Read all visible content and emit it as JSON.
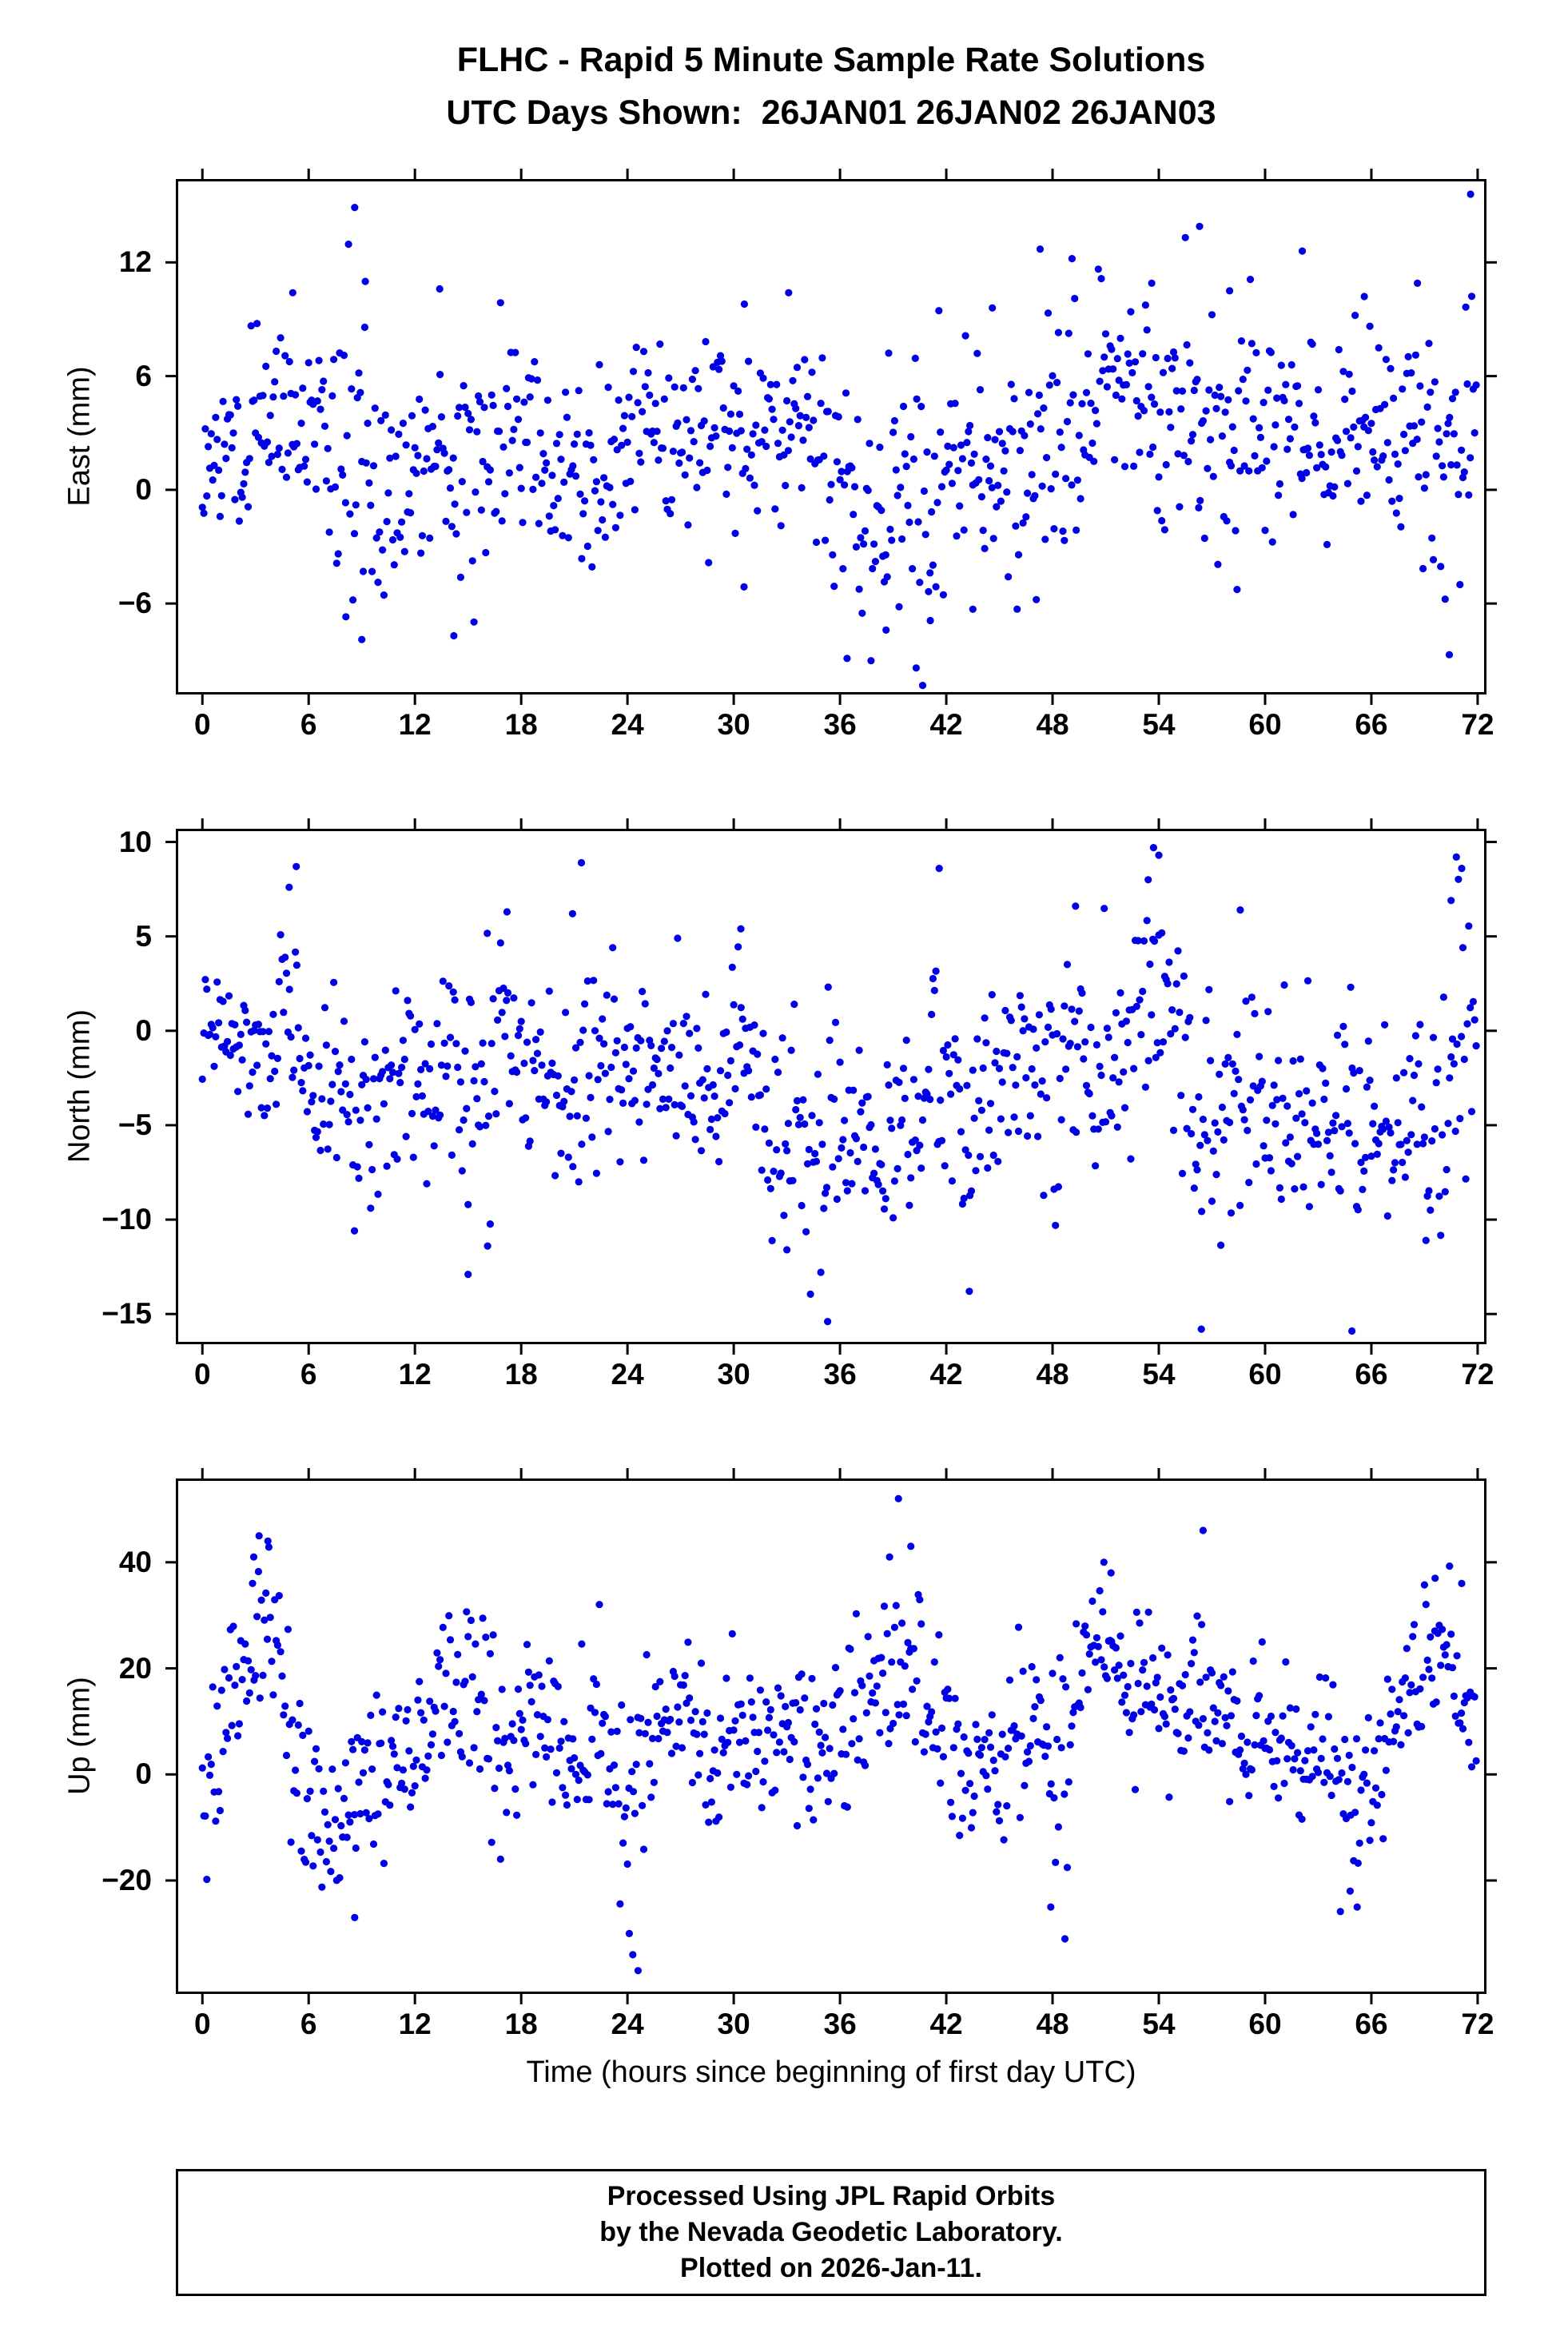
{
  "title": "FLHC - Rapid 5 Minute Sample Rate Solutions",
  "subtitle": "UTC Days Shown:  26JAN01 26JAN02 26JAN03",
  "footer": {
    "lines": [
      "Processed Using JPL Rapid Orbits",
      "by the Nevada Geodetic Laboratory.",
      "Plotted on 2026-Jan-11."
    ]
  },
  "chart_data": {
    "type": "scatter",
    "station": "FLHC",
    "xlabel": "Time (hours since beginning of first day UTC)",
    "xlim": [
      -1.5,
      72.5
    ],
    "x_ticks": [
      0,
      6,
      12,
      18,
      24,
      30,
      36,
      42,
      48,
      54,
      60,
      66,
      72
    ],
    "point_color": "#0000e6",
    "point_radius": 4.6,
    "marker": "circle",
    "sample_interval_minutes": 5,
    "panels": [
      {
        "name": "east",
        "ylabel": "East (mm)",
        "ylim": [
          -10.8,
          16.4
        ],
        "y_ticks": [
          -6,
          0,
          6,
          12
        ],
        "n_points": 864,
        "seed": 20260111,
        "trend": [
          [
            0,
            1.0,
            1.6
          ],
          [
            2,
            2.2,
            2.2
          ],
          [
            4,
            3.8,
            2.4
          ],
          [
            6,
            3.0,
            2.8
          ],
          [
            8,
            2.0,
            4.3
          ],
          [
            10,
            -0.5,
            3.4
          ],
          [
            12,
            1.2,
            3.0
          ],
          [
            14,
            1.0,
            3.2
          ],
          [
            16,
            2.2,
            2.4
          ],
          [
            18,
            2.6,
            2.2
          ],
          [
            20,
            1.8,
            2.6
          ],
          [
            22,
            0.6,
            2.8
          ],
          [
            24,
            2.0,
            2.8
          ],
          [
            26,
            3.0,
            2.4
          ],
          [
            28,
            3.0,
            2.0
          ],
          [
            30,
            2.4,
            2.6
          ],
          [
            32,
            3.6,
            2.2
          ],
          [
            34,
            3.2,
            2.4
          ],
          [
            36,
            0.2,
            3.0
          ],
          [
            38,
            -0.8,
            3.4
          ],
          [
            40,
            -1.2,
            3.8
          ],
          [
            42,
            0.2,
            3.0
          ],
          [
            44,
            1.2,
            2.6
          ],
          [
            46,
            1.6,
            3.0
          ],
          [
            48,
            3.2,
            3.4
          ],
          [
            50,
            4.2,
            3.0
          ],
          [
            52,
            5.0,
            2.8
          ],
          [
            54,
            4.6,
            3.0
          ],
          [
            56,
            4.2,
            3.0
          ],
          [
            58,
            3.6,
            3.0
          ],
          [
            60,
            2.6,
            3.4
          ],
          [
            62,
            3.2,
            2.8
          ],
          [
            64,
            2.6,
            3.0
          ],
          [
            66,
            4.2,
            3.0
          ],
          [
            68,
            3.2,
            3.4
          ],
          [
            70,
            1.4,
            3.8
          ],
          [
            72,
            4.2,
            3.2
          ]
        ],
        "outliers": [
          [
            8.6,
            14.9
          ],
          [
            9.2,
            11.0
          ],
          [
            5.1,
            10.4
          ],
          [
            13.4,
            10.6
          ],
          [
            8.1,
            -6.7
          ],
          [
            9.0,
            -7.9
          ],
          [
            14.2,
            -7.7
          ],
          [
            36.4,
            -8.9
          ],
          [
            38.6,
            -7.4
          ],
          [
            40.3,
            -9.4
          ],
          [
            41.1,
            -6.9
          ],
          [
            43.5,
            -6.3
          ],
          [
            47.3,
            12.7
          ],
          [
            49.1,
            12.2
          ],
          [
            53.6,
            10.9
          ],
          [
            56.3,
            13.9
          ],
          [
            58.0,
            10.5
          ],
          [
            62.1,
            12.6
          ],
          [
            65.6,
            10.2
          ],
          [
            68.6,
            10.9
          ],
          [
            70.4,
            -8.7
          ],
          [
            71.6,
            15.6
          ],
          [
            44.6,
            9.6
          ],
          [
            33.1,
            10.4
          ],
          [
            30.6,
            9.8
          ]
        ]
      },
      {
        "name": "north",
        "ylabel": "North (mm)",
        "ylim": [
          -16.6,
          10.7
        ],
        "y_ticks": [
          -15,
          -10,
          -5,
          0,
          5,
          10
        ],
        "n_points": 864,
        "seed": 77103,
        "trend": [
          [
            0,
            -0.5,
            1.4
          ],
          [
            1,
            0.6,
            1.5
          ],
          [
            2,
            -1.0,
            1.8
          ],
          [
            4,
            -1.2,
            2.2
          ],
          [
            5,
            1.5,
            3.2
          ],
          [
            6,
            -3.0,
            2.4
          ],
          [
            8,
            -4.0,
            2.4
          ],
          [
            9,
            -4.4,
            2.8
          ],
          [
            10,
            -3.0,
            2.4
          ],
          [
            11,
            -1.2,
            2.4
          ],
          [
            12,
            -2.2,
            2.4
          ],
          [
            13,
            -3.0,
            2.0
          ],
          [
            14,
            -2.6,
            3.0
          ],
          [
            15,
            -4.5,
            3.4
          ],
          [
            16,
            -3.0,
            3.0
          ],
          [
            17,
            0.5,
            3.0
          ],
          [
            18,
            -1.2,
            2.4
          ],
          [
            19,
            -3.2,
            2.4
          ],
          [
            20,
            -4.0,
            2.8
          ],
          [
            21,
            -2.0,
            3.0
          ],
          [
            22,
            -1.6,
            2.4
          ],
          [
            24,
            -1.6,
            2.0
          ],
          [
            26,
            -2.0,
            2.0
          ],
          [
            28,
            -2.6,
            2.4
          ],
          [
            29,
            -4.8,
            2.4
          ],
          [
            30,
            1.5,
            2.6
          ],
          [
            31,
            -0.5,
            3.0
          ],
          [
            32,
            -5.0,
            3.2
          ],
          [
            34,
            -6.0,
            3.0
          ],
          [
            35,
            -6.8,
            3.4
          ],
          [
            36,
            -5.0,
            2.8
          ],
          [
            37,
            -6.0,
            2.4
          ],
          [
            38,
            -5.5,
            2.4
          ],
          [
            39,
            -6.5,
            2.4
          ],
          [
            40,
            -4.0,
            3.0
          ],
          [
            41,
            -2.0,
            3.4
          ],
          [
            42,
            -2.6,
            3.0
          ],
          [
            43,
            -4.2,
            3.0
          ],
          [
            44,
            -3.0,
            2.4
          ],
          [
            46,
            -3.0,
            2.4
          ],
          [
            47,
            -2.2,
            2.4
          ],
          [
            48,
            -2.6,
            2.8
          ],
          [
            49,
            -1.2,
            3.0
          ],
          [
            50,
            -2.2,
            2.4
          ],
          [
            52,
            -1.2,
            2.6
          ],
          [
            53,
            2.0,
            3.0
          ],
          [
            54,
            4.5,
            3.0
          ],
          [
            55,
            0.0,
            3.2
          ],
          [
            56,
            -4.8,
            3.8
          ],
          [
            57,
            -5.4,
            3.0
          ],
          [
            58,
            -4.2,
            3.0
          ],
          [
            59,
            -5.0,
            2.4
          ],
          [
            60,
            -3.2,
            3.0
          ],
          [
            61,
            -4.2,
            3.0
          ],
          [
            62,
            -4.6,
            3.0
          ],
          [
            63,
            -5.0,
            2.4
          ],
          [
            64,
            -4.2,
            3.0
          ],
          [
            65,
            -5.2,
            3.4
          ],
          [
            66,
            -4.6,
            3.0
          ],
          [
            67,
            -3.2,
            3.0
          ],
          [
            68,
            -4.2,
            3.0
          ],
          [
            69,
            -5.0,
            3.0
          ],
          [
            70,
            -2.2,
            3.4
          ],
          [
            71,
            1.5,
            3.8
          ],
          [
            72,
            -1.0,
            3.0
          ]
        ],
        "outliers": [
          [
            5.3,
            8.7
          ],
          [
            4.9,
            7.6
          ],
          [
            21.4,
            8.9
          ],
          [
            20.9,
            6.2
          ],
          [
            17.2,
            6.3
          ],
          [
            35.3,
            -15.4
          ],
          [
            33.0,
            -11.6
          ],
          [
            43.3,
            -13.8
          ],
          [
            15.0,
            -12.9
          ],
          [
            16.1,
            -11.4
          ],
          [
            41.6,
            8.6
          ],
          [
            49.3,
            6.6
          ],
          [
            53.7,
            9.7
          ],
          [
            54.0,
            9.3
          ],
          [
            53.4,
            8.0
          ],
          [
            56.4,
            -15.8
          ],
          [
            64.9,
            -15.9
          ],
          [
            70.8,
            9.2
          ],
          [
            71.1,
            8.6
          ],
          [
            70.5,
            6.9
          ],
          [
            30.4,
            5.4
          ],
          [
            58.6,
            6.4
          ]
        ]
      },
      {
        "name": "up",
        "ylabel": "Up (mm)",
        "ylim": [
          -41.4,
          55.8
        ],
        "y_ticks": [
          -20,
          0,
          20,
          40
        ],
        "n_points": 864,
        "seed": 424242,
        "trend": [
          [
            0,
            0,
            7
          ],
          [
            1,
            4,
            9
          ],
          [
            2,
            12,
            9
          ],
          [
            3,
            26,
            8
          ],
          [
            4,
            28,
            7
          ],
          [
            5,
            6,
            11
          ],
          [
            6,
            -7,
            7
          ],
          [
            7,
            -8,
            6
          ],
          [
            8,
            -9,
            7
          ],
          [
            9,
            -5,
            7
          ],
          [
            10,
            -1,
            8
          ],
          [
            11,
            2,
            7
          ],
          [
            12,
            5,
            9
          ],
          [
            13,
            8,
            9
          ],
          [
            14,
            18,
            9
          ],
          [
            15,
            14,
            9
          ],
          [
            16,
            9,
            11
          ],
          [
            17,
            4,
            9
          ],
          [
            18,
            8,
            7
          ],
          [
            19,
            10,
            7
          ],
          [
            20,
            4,
            9
          ],
          [
            21,
            1,
            9
          ],
          [
            22,
            5,
            9
          ],
          [
            23,
            8,
            9
          ],
          [
            24,
            -2,
            13
          ],
          [
            25,
            5,
            11
          ],
          [
            26,
            14,
            7
          ],
          [
            27,
            10,
            7
          ],
          [
            28,
            5,
            7
          ],
          [
            29,
            5,
            7
          ],
          [
            30,
            8,
            7
          ],
          [
            31,
            8,
            7
          ],
          [
            32,
            8,
            7
          ],
          [
            33,
            10,
            7
          ],
          [
            34,
            5,
            7
          ],
          [
            35,
            5,
            7
          ],
          [
            36,
            8,
            9
          ],
          [
            37,
            11,
            9
          ],
          [
            38,
            15,
            9
          ],
          [
            39,
            21,
            10
          ],
          [
            40,
            24,
            9
          ],
          [
            41,
            14,
            9
          ],
          [
            42,
            6,
            9
          ],
          [
            43,
            1,
            9
          ],
          [
            44,
            2,
            7
          ],
          [
            45,
            0,
            9
          ],
          [
            46,
            5,
            9
          ],
          [
            47,
            10,
            9
          ],
          [
            48,
            4,
            11
          ],
          [
            49,
            10,
            9
          ],
          [
            50,
            24,
            7
          ],
          [
            51,
            27,
            5
          ],
          [
            52,
            15,
            7
          ],
          [
            53,
            18,
            7
          ],
          [
            54,
            15,
            7
          ],
          [
            55,
            12,
            9
          ],
          [
            56,
            14,
            9
          ],
          [
            57,
            10,
            7
          ],
          [
            58,
            8,
            7
          ],
          [
            59,
            5,
            7
          ],
          [
            60,
            8,
            7
          ],
          [
            61,
            5,
            7
          ],
          [
            62,
            1,
            7
          ],
          [
            63,
            5,
            7
          ],
          [
            64,
            4,
            9
          ],
          [
            65,
            -4,
            9
          ],
          [
            66,
            0,
            9
          ],
          [
            67,
            9,
            9
          ],
          [
            68,
            17,
            7
          ],
          [
            69,
            22,
            7
          ],
          [
            70,
            24,
            7
          ],
          [
            71,
            14,
            9
          ],
          [
            72,
            5,
            9
          ]
        ],
        "outliers": [
          [
            3.2,
            45
          ],
          [
            3.7,
            44
          ],
          [
            2.9,
            41
          ],
          [
            8.6,
            -27
          ],
          [
            24.3,
            -34
          ],
          [
            24.6,
            -37
          ],
          [
            24.1,
            -30
          ],
          [
            39.3,
            52
          ],
          [
            40.0,
            43
          ],
          [
            38.8,
            41
          ],
          [
            48.7,
            -31
          ],
          [
            47.9,
            -25
          ],
          [
            56.5,
            46
          ],
          [
            50.9,
            40
          ],
          [
            51.3,
            38
          ],
          [
            69.6,
            37
          ],
          [
            71.1,
            36
          ],
          [
            65.2,
            -25
          ],
          [
            64.8,
            -22
          ]
        ]
      }
    ]
  }
}
